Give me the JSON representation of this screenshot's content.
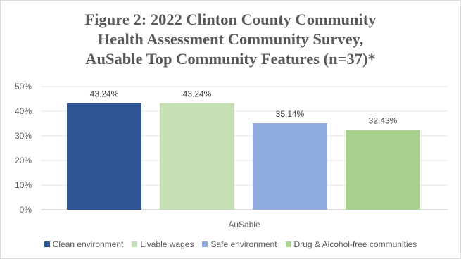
{
  "chart_data": {
    "type": "bar",
    "title_lines": [
      "Figure 2: 2022 Clinton County Community",
      "Health Assessment Community Survey,",
      "AuSable Top Community Features (n=37)*"
    ],
    "categories": [
      "AuSable"
    ],
    "series": [
      {
        "name": "Clean environment",
        "values": [
          43.24
        ],
        "label": "43.24%",
        "color": "#2f5597"
      },
      {
        "name": "Livable wages",
        "values": [
          43.24
        ],
        "label": "43.24%",
        "color": "#c5e0b4"
      },
      {
        "name": "Safe environment",
        "values": [
          35.14
        ],
        "label": "35.14%",
        "color": "#8faadc"
      },
      {
        "name": "Drug & Alcohol-free communities",
        "values": [
          32.43
        ],
        "label": "32.43%",
        "color": "#a9d18e"
      }
    ],
    "yticks": [
      "0%",
      "10%",
      "20%",
      "30%",
      "40%",
      "50%"
    ],
    "ylim": [
      0,
      50
    ],
    "grid": true,
    "legend_position": "bottom"
  }
}
